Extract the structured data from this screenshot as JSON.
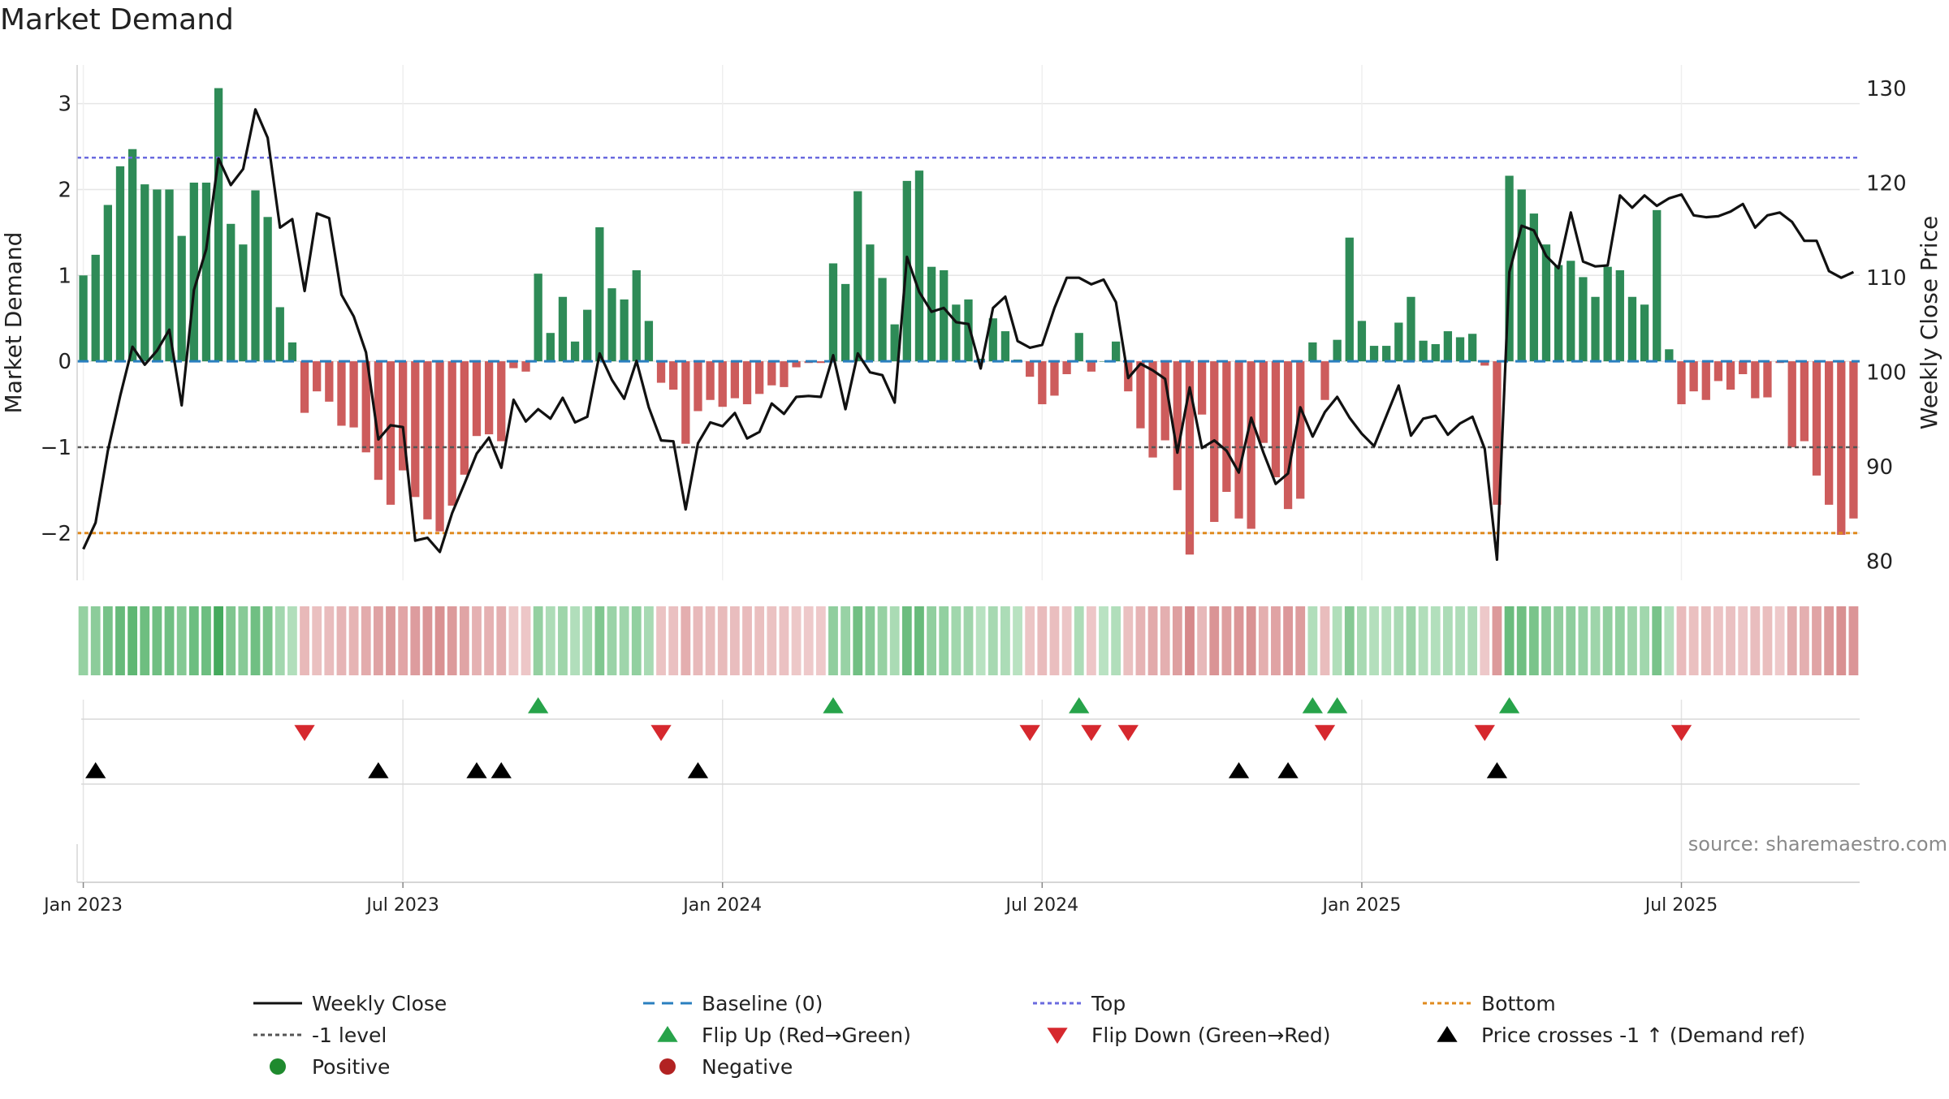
{
  "chart_data": {
    "type": "bar",
    "title": "Market Demand",
    "source_text": "source: sharemaestro.com",
    "x_tick_labels": [
      "Jan 2023",
      "Jul 2023",
      "Jan 2024",
      "Jul 2024",
      "Jan 2025",
      "Jul 2025"
    ],
    "y_left": {
      "label": "Market Demand",
      "ticks": [
        -2,
        -1,
        0,
        1,
        2,
        3
      ],
      "ylim": [
        -2.55,
        3.45
      ]
    },
    "y_right": {
      "label": "Weekly Close Price",
      "ticks": [
        80,
        90,
        100,
        110,
        120,
        130
      ],
      "ylim": [
        78,
        132.5
      ]
    },
    "reference_lines": {
      "top": 2.37,
      "baseline": 0,
      "minus_one": -1,
      "bottom": -2
    },
    "demand": [
      1.0,
      1.24,
      1.82,
      2.27,
      2.47,
      2.06,
      2.0,
      2.0,
      1.46,
      2.08,
      2.08,
      3.18,
      1.6,
      1.36,
      1.99,
      1.68,
      0.63,
      0.22,
      -0.6,
      -0.35,
      -0.47,
      -0.75,
      -0.77,
      -1.06,
      -1.38,
      -1.67,
      -1.27,
      -1.58,
      -1.84,
      -1.98,
      -1.68,
      -1.32,
      -0.87,
      -0.85,
      -0.93,
      -0.08,
      -0.12,
      1.02,
      0.33,
      0.75,
      0.23,
      0.6,
      1.56,
      0.85,
      0.72,
      1.06,
      0.47,
      -0.25,
      -0.33,
      -0.96,
      -0.58,
      -0.45,
      -0.53,
      -0.43,
      -0.5,
      -0.38,
      -0.28,
      -0.3,
      -0.07,
      -0.02,
      -0.02,
      1.14,
      0.9,
      1.98,
      1.36,
      0.97,
      0.43,
      2.1,
      2.22,
      1.1,
      1.06,
      0.66,
      0.72,
      0.03,
      0.5,
      0.35,
      0.02,
      -0.18,
      -0.5,
      -0.4,
      -0.15,
      0.33,
      -0.12,
      0.0,
      0.23,
      -0.35,
      -0.78,
      -1.12,
      -0.92,
      -1.5,
      -2.25,
      -0.62,
      -1.87,
      -1.52,
      -1.83,
      -1.95,
      -0.95,
      -1.35,
      -1.72,
      -1.6,
      0.22,
      -0.45,
      0.25,
      1.44,
      0.47,
      0.18,
      0.18,
      0.45,
      0.75,
      0.24,
      0.2,
      0.35,
      0.28,
      0.32,
      -0.05,
      -1.67,
      2.16,
      2.0,
      1.72,
      1.36,
      1.12,
      1.17,
      0.98,
      0.75,
      1.1,
      1.06,
      0.75,
      0.66,
      1.76,
      0.14,
      -0.5,
      -0.35,
      -0.45,
      -0.23,
      -0.33,
      -0.15,
      -0.43,
      -0.42,
      -0.02,
      -1.0,
      -0.93,
      -1.33,
      -1.67,
      -2.02,
      -1.83
    ],
    "weekly_close": [
      81.3,
      84.1,
      91.7,
      97.5,
      102.7,
      100.8,
      102.3,
      104.5,
      96.5,
      108.7,
      113.0,
      122.6,
      119.8,
      121.5,
      127.8,
      124.8,
      115.3,
      116.2,
      108.6,
      116.8,
      116.3,
      108.2,
      105.9,
      102.1,
      92.9,
      94.4,
      94.2,
      82.2,
      82.5,
      81.0,
      85.1,
      88.2,
      91.4,
      93.1,
      89.9,
      97.1,
      94.8,
      96.1,
      95.1,
      97.3,
      94.7,
      95.3,
      102.0,
      99.2,
      97.2,
      101.2,
      96.3,
      92.8,
      92.7,
      85.5,
      92.5,
      94.7,
      94.3,
      95.7,
      93.0,
      93.7,
      96.7,
      95.6,
      97.4,
      97.5,
      97.4,
      101.8,
      96.1,
      102.0,
      100.0,
      99.7,
      96.8,
      112.2,
      108.5,
      106.4,
      106.8,
      105.3,
      105.1,
      100.4,
      106.8,
      108.0,
      103.3,
      102.6,
      102.9,
      106.8,
      110.0,
      110.0,
      109.3,
      109.8,
      107.4,
      99.4,
      100.9,
      100.2,
      99.3,
      91.5,
      98.4,
      92.0,
      92.8,
      91.7,
      89.4,
      95.2,
      91.5,
      88.2,
      89.3,
      96.3,
      93.2,
      95.8,
      97.4,
      95.2,
      93.5,
      92.2,
      95.4,
      98.6,
      93.3,
      95.1,
      95.4,
      93.4,
      94.6,
      95.3,
      91.9,
      80.2,
      110.6,
      115.5,
      115.0,
      112.3,
      111.0,
      116.9,
      111.7,
      111.2,
      111.3,
      118.7,
      117.4,
      118.7,
      117.6,
      118.4,
      118.8,
      116.6,
      116.4,
      116.5,
      117.0,
      117.8,
      115.3,
      116.6,
      116.9,
      115.9,
      113.9,
      113.9,
      110.7,
      110.0,
      110.6
    ]
  },
  "strip_rows": {
    "flip_up": "Flip Up (Red→Green)",
    "flip_down": "Flip Down (Green→Red)",
    "price_cross": "Price crosses -1 ↑ (Demand ref)"
  },
  "legend": [
    {
      "key": "weekly_close",
      "label": "Weekly Close",
      "color": "#111111",
      "style": "solid-line"
    },
    {
      "key": "baseline",
      "label": "Baseline (0)",
      "color": "#2a7fbf",
      "style": "dashed-line"
    },
    {
      "key": "top",
      "label": "Top",
      "color": "#6a6adf",
      "style": "dotted-line"
    },
    {
      "key": "bottom",
      "label": "Bottom",
      "color": "#e08a1e",
      "style": "dotted-line"
    },
    {
      "key": "minus_one",
      "label": "-1 level",
      "color": "#555555",
      "style": "dotted-line"
    },
    {
      "key": "flip_up",
      "label": "Flip Up (Red→Green)",
      "color": "#27a34a",
      "style": "triangle-up"
    },
    {
      "key": "flip_down",
      "label": "Flip Down (Green→Red)",
      "color": "#d6282e",
      "style": "triangle-down"
    },
    {
      "key": "price_cross",
      "label": "Price crosses -1 ↑ (Demand ref)",
      "color": "#000000",
      "style": "triangle-up"
    },
    {
      "key": "positive",
      "label": "Positive",
      "color": "#1f8a2e",
      "style": "dot"
    },
    {
      "key": "negative",
      "label": "Negative",
      "color": "#b22222",
      "style": "dot"
    }
  ],
  "colors": {
    "positive_bar": "#2e8b57",
    "negative_bar": "#cd5c5c",
    "grid": "#e6e6e6"
  }
}
